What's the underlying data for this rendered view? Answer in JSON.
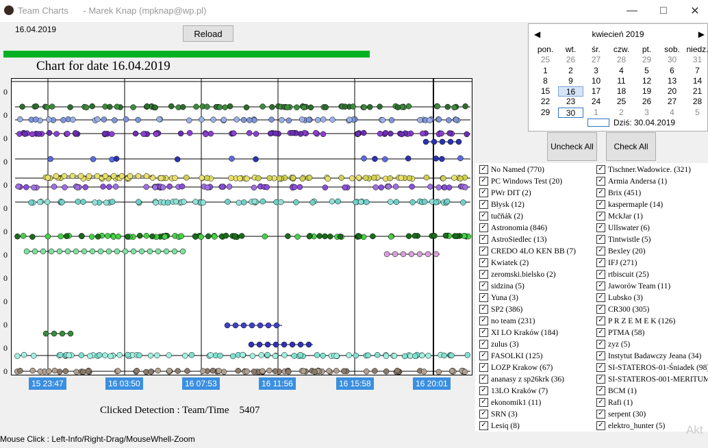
{
  "window": {
    "title": "Team Charts",
    "user": "- Marek Knap (mpknap@wp.pl)"
  },
  "date_label": "16.04.2019",
  "reload_label": "Reload",
  "chart": {
    "title": "Chart for date 16.04.2019",
    "ytick": "0",
    "xlabels": [
      "15 23:47",
      "16 03:50",
      "16 07:53",
      "16 11:56",
      "16 15:58",
      "16 20:01"
    ]
  },
  "clicked": {
    "label": "Clicked Detection : Team/Time",
    "value": "5407"
  },
  "status": "Mouse Click : Left-Info/Right-Drag/MouseWhell-Zoom",
  "calendar": {
    "month": "kwiecień 2019",
    "weekdays": [
      "pon.",
      "wt.",
      "śr.",
      "czw.",
      "pt.",
      "sob.",
      "niedz."
    ],
    "days": [
      "25",
      "26",
      "27",
      "28",
      "29",
      "30",
      "31",
      "1",
      "2",
      "3",
      "4",
      "5",
      "6",
      "7",
      "8",
      "9",
      "10",
      "11",
      "12",
      "13",
      "14",
      "15",
      "16",
      "17",
      "18",
      "19",
      "20",
      "21",
      "22",
      "23",
      "24",
      "25",
      "26",
      "27",
      "28",
      "29",
      "30",
      "1",
      "2",
      "3",
      "4",
      "5"
    ],
    "today_label": "Dziś: 30.04.2019"
  },
  "buttons": {
    "uncheck": "Uncheck All",
    "check": "Check All"
  },
  "teams_left": [
    "No Named (770)",
    "PC Windows Test (20)",
    "PWr DIT (2)",
    "Błysk (12)",
    "tučňák (2)",
    "Astronomia (846)",
    "AstroSiedlec (13)",
    "CREDO 4LO KEN BB (7)",
    "Kwiatek (2)",
    "zeromski.bielsko (2)",
    "sidzina (5)",
    "Yuna (3)",
    "SP2 (386)",
    "no team (231)",
    "XI LO Kraków (184)",
    "zulus (3)",
    "FASOLKI (125)",
    "LOZP Krakow (67)",
    "ananasy z sp26krk (36)",
    "13LO Kraków (7)",
    "ekonomik1 (11)",
    "SRN (3)",
    "Lesiq (8)"
  ],
  "teams_right": [
    "Tischner.Wadowice. (321)",
    "Armia Andersa (1)",
    "Brix (451)",
    "kaspermaple (14)",
    "MckJar (1)",
    "Ullswater (6)",
    "Tintwistle (5)",
    "Bexley (20)",
    "IFJ (271)",
    "rtbiscuit (25)",
    "Jaworów Team (11)",
    "Lubsko (3)",
    "CR300 (305)",
    "P R Z E M E K (126)",
    "PTMA (58)",
    "zyz (5)",
    "Instytut Badawczy Jeana (34)",
    "SI-STATEROS-01-Śniadek (98)",
    "SI-STATEROS-001-MERITUM (",
    "BCM (1)",
    "Rafi (1)",
    "serpent (30)",
    "elektro_hunter (5)"
  ],
  "watermark": "Akt"
}
